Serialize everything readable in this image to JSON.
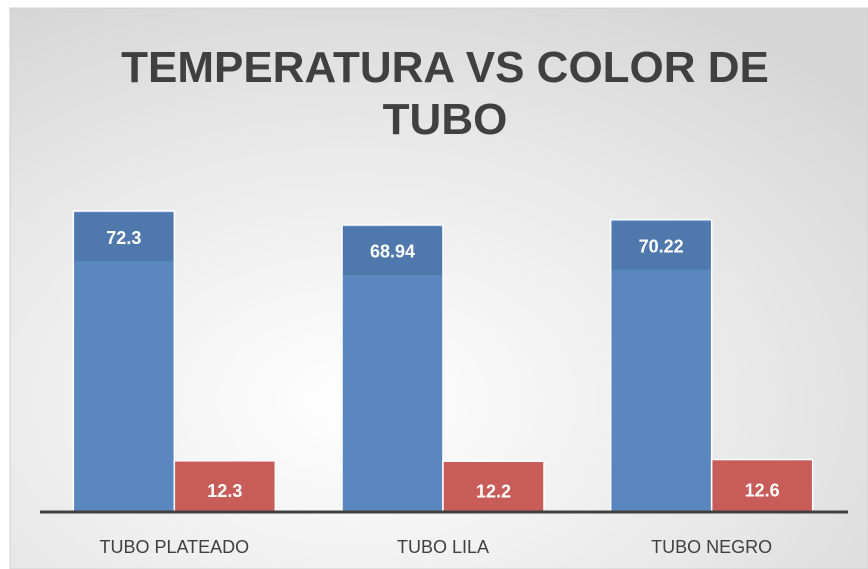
{
  "chart_data": {
    "type": "bar",
    "title": "TEMPERATURA VS COLOR DE TUBO",
    "categories": [
      "TUBO PLATEADO",
      "TUBO LILA",
      "TUBO NEGRO"
    ],
    "series": [
      {
        "color": "#5b87bf",
        "values": [
          72.3,
          68.94,
          70.22
        ]
      },
      {
        "color": "#c85c59",
        "values": [
          12.3,
          12.2,
          12.6
        ]
      }
    ]
  }
}
